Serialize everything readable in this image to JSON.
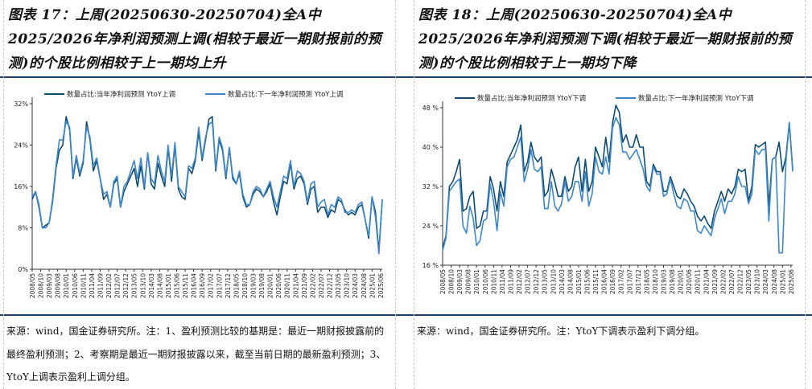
{
  "left": {
    "title": "图表 17：上周(20250630-20250704)全A中2025/2026年净利润预测上调(相较于最近一期财报前的预测)的个股比例相较于上一期均上升",
    "note": "来源：wind，国金证券研究所。注：1、盈利预测比较的基期是：最近一期财报披露前的最终盈利预测；2、考察期是最近一期财报披露以来，截至当前日期的最新盈利预测；3、YtoY上调表示盈利上调分组。"
  },
  "right": {
    "title": "图表 18：上周(20250630-20250704)全A中2025/2026年净利润预测下调(相较于最近一期财报前的预测)的个股比例相较于上一期均下降",
    "note": "来源：wind，国金证券研究所。注：YtoY下调表示盈利下调分组。"
  },
  "chart_data": [
    {
      "type": "line",
      "ylim": [
        0,
        32
      ],
      "yticks": [
        0,
        8,
        16,
        24,
        32
      ],
      "ytick_labels": [
        "0%",
        "8%",
        "16%",
        "24%",
        "32%"
      ],
      "grid": false,
      "legend": "top",
      "xtick_labels": [
        "2008/05",
        "2008/10",
        "2009/03",
        "2009/08",
        "2010/01",
        "2010/06",
        "2010/11",
        "2011/04",
        "2011/09",
        "2012/02",
        "2012/07",
        "2012/12",
        "2013/05",
        "2013/10",
        "2014/03",
        "2014/08",
        "2015/01",
        "2015/06",
        "2015/11",
        "2016/04",
        "2016/09",
        "2017/02",
        "2017/07",
        "2017/12",
        "2018/05",
        "2018/10",
        "2019/03",
        "2019/08",
        "2020/01",
        "2020/06",
        "2020/11",
        "2021/04",
        "2021/09",
        "2022/02",
        "2022/07",
        "2022/12",
        "2023/05",
        "2023/10",
        "2024/03",
        "2024/08",
        "2025/01",
        "2025/06"
      ],
      "x": [
        "2008/05",
        "2008/07",
        "2008/09",
        "2008/11",
        "2009/01",
        "2009/03",
        "2009/05",
        "2009/07",
        "2009/09",
        "2009/11",
        "2010/01",
        "2010/03",
        "2010/05",
        "2010/07",
        "2010/09",
        "2010/11",
        "2011/01",
        "2011/03",
        "2011/05",
        "2011/07",
        "2011/09",
        "2011/11",
        "2012/01",
        "2012/03",
        "2012/05",
        "2012/07",
        "2012/09",
        "2012/11",
        "2013/01",
        "2013/03",
        "2013/05",
        "2013/07",
        "2013/09",
        "2013/11",
        "2014/01",
        "2014/03",
        "2014/05",
        "2014/07",
        "2014/09",
        "2014/11",
        "2015/01",
        "2015/03",
        "2015/05",
        "2015/07",
        "2015/09",
        "2015/11",
        "2016/01",
        "2016/03",
        "2016/05",
        "2016/07",
        "2016/09",
        "2016/11",
        "2017/01",
        "2017/03",
        "2017/05",
        "2017/07",
        "2017/09",
        "2017/11",
        "2018/01",
        "2018/03",
        "2018/05",
        "2018/07",
        "2018/09",
        "2018/11",
        "2019/01",
        "2019/03",
        "2019/05",
        "2019/07",
        "2019/09",
        "2019/11",
        "2020/01",
        "2020/03",
        "2020/05",
        "2020/07",
        "2020/09",
        "2020/11",
        "2021/01",
        "2021/03",
        "2021/05",
        "2021/07",
        "2021/09",
        "2021/11",
        "2022/01",
        "2022/03",
        "2022/05",
        "2022/07",
        "2022/09",
        "2022/11",
        "2023/01",
        "2023/03",
        "2023/05",
        "2023/07",
        "2023/09",
        "2023/11",
        "2024/01",
        "2024/03",
        "2024/05",
        "2024/07",
        "2024/09",
        "2024/11",
        "2025/01",
        "2025/03",
        "2025/05",
        "2025/07"
      ],
      "series": [
        {
          "name": "数量占比:当年净利润预测 YtoY上调",
          "color": "#0f4c72",
          "values": [
            13.5,
            15,
            12,
            8,
            8.5,
            9,
            13,
            19.5,
            23,
            24,
            29.5,
            27,
            17.5,
            21.5,
            18,
            20.5,
            28.5,
            25,
            19,
            21,
            17.5,
            13.5,
            14.5,
            12,
            16.5,
            17.5,
            12,
            15,
            16.5,
            18,
            19.5,
            16,
            20,
            15.5,
            22.5,
            16.5,
            15.5,
            20.5,
            18,
            16,
            23.5,
            17,
            24,
            15.5,
            14,
            13.5,
            19.5,
            18.5,
            21,
            26.5,
            21,
            25,
            29,
            29.5,
            19,
            25,
            23,
            17.5,
            23.5,
            17.5,
            16.5,
            18.5,
            14,
            12,
            12.5,
            14.5,
            15.5,
            15,
            14,
            15,
            16.5,
            13,
            10.5,
            14,
            17,
            16.5,
            20.5,
            15.5,
            17.5,
            18,
            16.5,
            12.5,
            15.5,
            16,
            11,
            12,
            12,
            10,
            11.5,
            11,
            13.5,
            13,
            11.5,
            10.5,
            11,
            10.5,
            12,
            12.5,
            9.5,
            6,
            14,
            11,
            3.5,
            13.5
          ]
        },
        {
          "name": "数量占比:下一年净利润预测 YtoY上调",
          "color": "#3f87c8",
          "values": [
            14,
            15,
            12.5,
            8,
            8,
            9,
            13.5,
            20,
            25,
            25,
            28.5,
            27.5,
            18,
            22,
            18.5,
            21,
            27.5,
            25.5,
            20,
            21.5,
            17.5,
            14.5,
            15,
            12,
            17,
            18,
            12,
            16,
            17,
            19,
            21,
            17.5,
            21.5,
            16,
            22.5,
            17.5,
            16.5,
            22,
            19,
            17,
            24,
            18,
            24.5,
            16,
            15,
            14,
            20,
            19.5,
            21.5,
            27.5,
            21.5,
            25.5,
            28,
            28.5,
            19.5,
            25.5,
            23.5,
            18,
            23.5,
            18,
            16.5,
            19,
            14.5,
            12.5,
            12.5,
            15,
            16,
            15.5,
            14,
            15.5,
            17,
            14,
            12,
            15,
            18,
            17.5,
            21,
            16,
            19,
            18.5,
            17,
            13,
            16.5,
            17,
            12,
            13,
            13.5,
            10.5,
            12.5,
            12,
            14,
            13.5,
            11,
            11,
            11.5,
            11,
            12.5,
            13,
            9.5,
            6.5,
            14,
            10,
            3,
            13.5
          ]
        }
      ]
    },
    {
      "type": "line",
      "ylim": [
        16,
        48
      ],
      "yticks": [
        16,
        24,
        32,
        40,
        48
      ],
      "ytick_labels": [
        "16 %",
        "24 %",
        "32 %",
        "40 %",
        "48 %"
      ],
      "grid": false,
      "legend": "top",
      "xtick_labels": [
        "2008/05",
        "2008/10",
        "2009/03",
        "2009/08",
        "2010/01",
        "2010/06",
        "2010/11",
        "2011/04",
        "2011/09",
        "2012/02",
        "2012/07",
        "2012/12",
        "2013/05",
        "2013/10",
        "2014/03",
        "2014/08",
        "2015/01",
        "2015/06",
        "2015/11",
        "2016/04",
        "2016/09",
        "2017/02",
        "2017/07",
        "2017/12",
        "2018/05",
        "2018/10",
        "2019/03",
        "2019/08",
        "2020/01",
        "2020/06",
        "2020/11",
        "2021/04",
        "2021/09",
        "2022/02",
        "2022/07",
        "2022/12",
        "2023/05",
        "2023/10",
        "2024/03",
        "2024/08",
        "2025/01",
        "2025/06"
      ],
      "x": [
        "2008/05",
        "2008/07",
        "2008/09",
        "2008/11",
        "2009/01",
        "2009/03",
        "2009/05",
        "2009/07",
        "2009/09",
        "2009/11",
        "2010/01",
        "2010/03",
        "2010/05",
        "2010/07",
        "2010/09",
        "2010/11",
        "2011/01",
        "2011/03",
        "2011/05",
        "2011/07",
        "2011/09",
        "2011/11",
        "2012/01",
        "2012/03",
        "2012/05",
        "2012/07",
        "2012/09",
        "2012/11",
        "2013/01",
        "2013/03",
        "2013/05",
        "2013/07",
        "2013/09",
        "2013/11",
        "2014/01",
        "2014/03",
        "2014/05",
        "2014/07",
        "2014/09",
        "2014/11",
        "2015/01",
        "2015/03",
        "2015/05",
        "2015/07",
        "2015/09",
        "2015/11",
        "2016/01",
        "2016/03",
        "2016/05",
        "2016/07",
        "2016/09",
        "2016/11",
        "2017/01",
        "2017/03",
        "2017/05",
        "2017/07",
        "2017/09",
        "2017/11",
        "2018/01",
        "2018/03",
        "2018/05",
        "2018/07",
        "2018/09",
        "2018/11",
        "2019/01",
        "2019/03",
        "2019/05",
        "2019/07",
        "2019/09",
        "2019/11",
        "2020/01",
        "2020/03",
        "2020/05",
        "2020/07",
        "2020/09",
        "2020/11",
        "2021/01",
        "2021/03",
        "2021/05",
        "2021/07",
        "2021/09",
        "2021/11",
        "2022/01",
        "2022/03",
        "2022/05",
        "2022/07",
        "2022/09",
        "2022/11",
        "2023/01",
        "2023/03",
        "2023/05",
        "2023/07",
        "2023/09",
        "2023/11",
        "2024/01",
        "2024/03",
        "2024/05",
        "2024/07",
        "2024/09",
        "2024/11",
        "2025/01",
        "2025/03",
        "2025/05",
        "2025/07"
      ],
      "series": [
        {
          "name": "数量占比:当年净利润预测 YtoY下调",
          "color": "#0f4c72",
          "values": [
            19.5,
            22,
            32,
            33,
            35,
            37.5,
            27,
            27.5,
            30,
            31,
            23.5,
            24,
            27,
            27,
            34,
            31.5,
            27,
            33,
            30,
            37,
            38.5,
            40,
            41.5,
            44.5,
            35,
            37,
            41,
            38,
            37,
            38,
            30,
            31,
            35.5,
            33,
            30,
            30,
            34,
            31,
            32,
            36,
            38,
            31,
            37.5,
            31,
            33,
            40,
            38,
            36,
            42,
            37,
            45,
            48.5,
            47,
            41,
            42.5,
            40,
            40,
            42.5,
            40,
            40,
            33,
            32,
            36.5,
            35,
            35,
            31,
            31,
            34,
            32,
            30,
            29.5,
            31.5,
            30.5,
            29,
            28,
            26,
            25,
            26,
            24.5,
            23.5,
            27,
            29,
            31,
            29,
            31.5,
            30.5,
            32,
            35.5,
            35,
            35.5,
            29,
            32,
            40.5,
            40,
            40.5,
            41,
            28,
            37.5,
            38,
            41,
            35,
            38,
            45,
            35.5
          ]
        },
        {
          "name": "数量占比:下一年净利润预测 YtoY下调",
          "color": "#3f87c8",
          "values": [
            19,
            21.5,
            31,
            32,
            33,
            33.5,
            24,
            22.5,
            28,
            25.5,
            20,
            21,
            25,
            25.5,
            32.5,
            29,
            23,
            31,
            28,
            36,
            37.5,
            38,
            40,
            42,
            33,
            35.5,
            39.5,
            35.5,
            35,
            36,
            27.5,
            27.5,
            33,
            28,
            27,
            28.5,
            33,
            29,
            30,
            33,
            33,
            29,
            35,
            28,
            30.5,
            38,
            35,
            34.5,
            38,
            34.5,
            44,
            46,
            44.5,
            39,
            39,
            37.5,
            38.5,
            39.5,
            37.5,
            35.5,
            32,
            31,
            36,
            34.5,
            34.5,
            30,
            30.5,
            33.5,
            30.5,
            28,
            27.5,
            29.5,
            29,
            27,
            27,
            23,
            22.5,
            24,
            23,
            22,
            25.5,
            27.5,
            29.5,
            26.5,
            29,
            29,
            30.5,
            34,
            32,
            32,
            28.5,
            30.5,
            39.5,
            38.5,
            39.5,
            39.5,
            25,
            37.5,
            38,
            18.5,
            18.5,
            37,
            45,
            35
          ]
        }
      ]
    }
  ]
}
